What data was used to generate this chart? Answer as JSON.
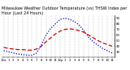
{
  "title": "Milwaukee Weather Outdoor Temperature (vs) THSW Index per Hour (Last 24 Hours)",
  "hours": [
    0,
    1,
    2,
    3,
    4,
    5,
    6,
    7,
    8,
    9,
    10,
    11,
    12,
    13,
    14,
    15,
    16,
    17,
    18,
    19,
    20,
    21,
    22,
    23
  ],
  "temp": [
    38,
    36,
    35,
    34,
    34,
    33,
    33,
    35,
    40,
    48,
    55,
    62,
    67,
    70,
    71,
    70,
    68,
    65,
    60,
    55,
    50,
    46,
    43,
    40
  ],
  "thsw": [
    32,
    30,
    28,
    26,
    25,
    24,
    24,
    28,
    42,
    60,
    72,
    80,
    88,
    90,
    88,
    84,
    78,
    68,
    56,
    48,
    42,
    36,
    32,
    28
  ],
  "temp_color": "#cc0000",
  "thsw_color": "#0000cc",
  "bg_color": "#ffffff",
  "grid_color": "#888888",
  "ylim": [
    20,
    95
  ],
  "xlim": [
    -0.5,
    23.5
  ],
  "tick_labels": [
    "12a",
    "1",
    "2",
    "3",
    "4",
    "5",
    "6",
    "7",
    "8",
    "9",
    "10",
    "11",
    "12p",
    "1",
    "2",
    "3",
    "4",
    "5",
    "6",
    "7",
    "8",
    "9",
    "10",
    "11"
  ],
  "yticks": [
    30,
    40,
    50,
    60,
    70,
    80,
    90
  ],
  "title_fontsize": 3.5,
  "tick_fontsize": 2.8,
  "temp_lw": 0.9,
  "thsw_lw": 0.9
}
